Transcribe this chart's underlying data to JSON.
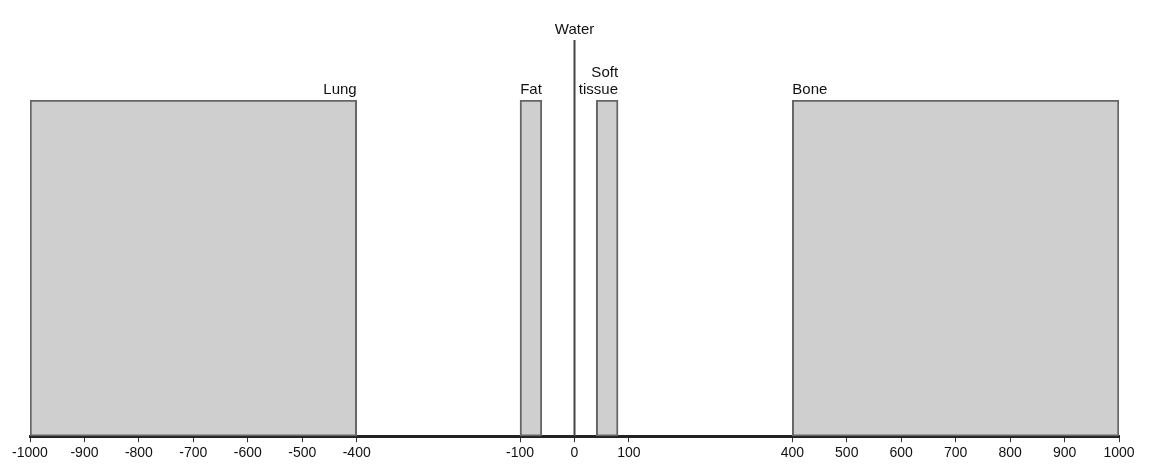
{
  "chart_data": {
    "type": "bar",
    "orientation": "horizontal",
    "categories": [
      null
    ],
    "series": [
      {
        "name": "Lung",
        "color": "#cfcfcf",
        "values": [
          600
        ],
        "base": [
          -1000
        ]
      },
      {
        "name": "Fat",
        "color": "#cfcfcf",
        "values": [
          40
        ],
        "base": [
          -100
        ]
      },
      {
        "name": "Soft\ntissue",
        "color": "#cfcfcf",
        "values": [
          40
        ],
        "base": [
          40
        ]
      },
      {
        "name": "Bone",
        "color": "#cfcfcf",
        "values": [
          600
        ],
        "base": [
          400
        ]
      }
    ],
    "xlim": [
      -1000,
      1000
    ],
    "xticks": [
      -1000,
      -900,
      -800,
      -700,
      -600,
      -500,
      -400,
      -100,
      0,
      100,
      400,
      500,
      600,
      700,
      800,
      900,
      1000
    ],
    "ref_lines": [
      {
        "axis": "x",
        "value": 0,
        "label": "Water",
        "color": "#444444"
      }
    ],
    "tick_labels": "x",
    "grid": false,
    "legend": false
  }
}
